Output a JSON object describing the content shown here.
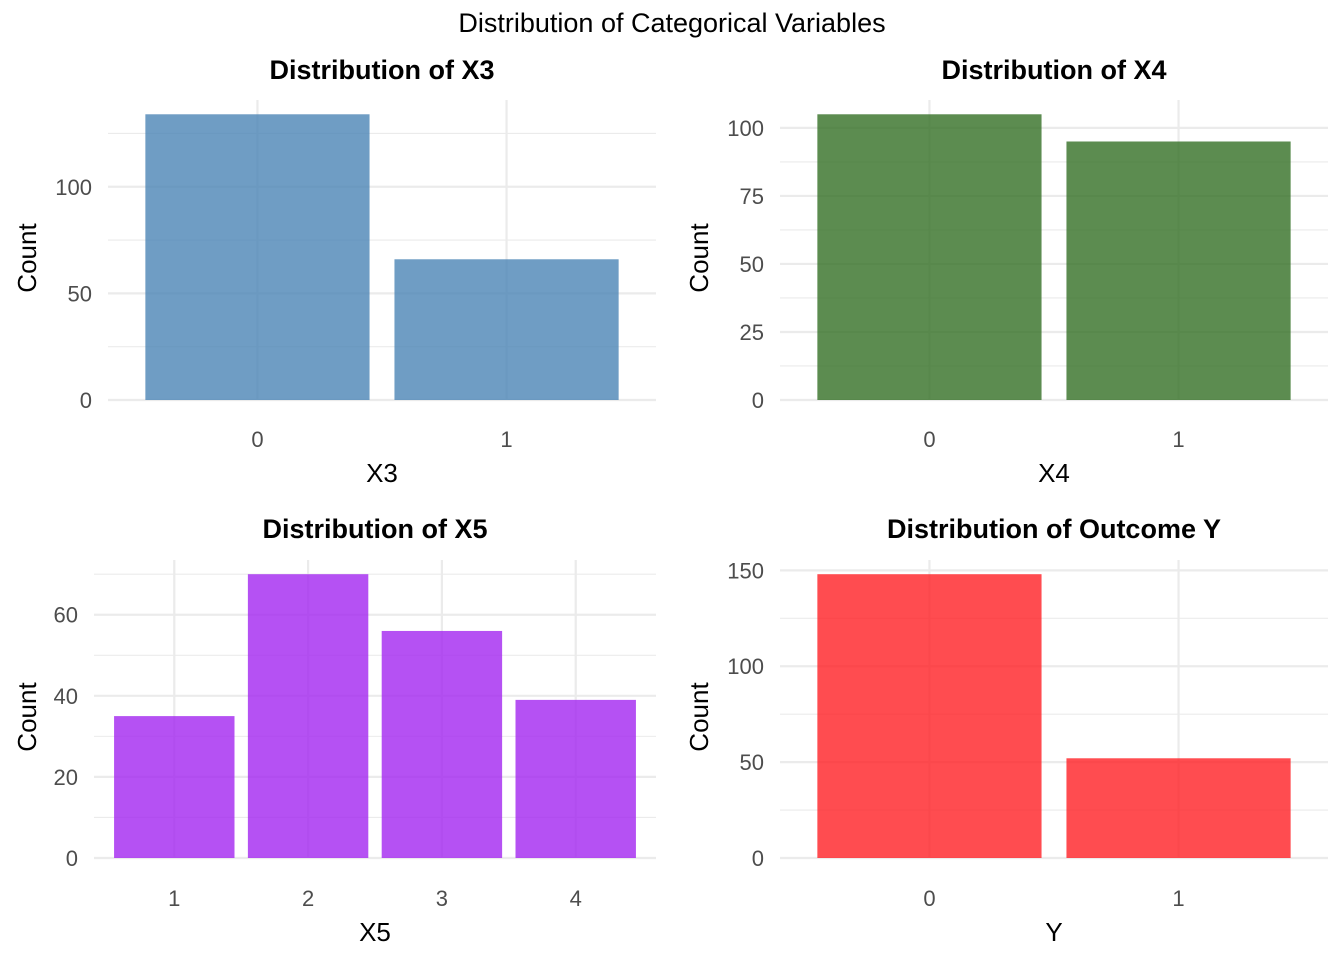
{
  "main_title": "Distribution of Categorical Variables",
  "chart_data": [
    {
      "type": "bar",
      "title": "Distribution of X3",
      "xlabel": "X3",
      "ylabel": "Count",
      "categories": [
        "0",
        "1"
      ],
      "values": [
        134,
        66
      ],
      "yticks": [
        0,
        50,
        100
      ],
      "ylim": [
        0,
        134
      ],
      "color": "#4682b4",
      "grid": true
    },
    {
      "type": "bar",
      "title": "Distribution of X4",
      "xlabel": "X4",
      "ylabel": "Count",
      "categories": [
        "0",
        "1"
      ],
      "values": [
        105,
        95
      ],
      "yticks": [
        0,
        25,
        50,
        75,
        100
      ],
      "ylim": [
        0,
        105
      ],
      "color": "#2e6b1f",
      "grid": true
    },
    {
      "type": "bar",
      "title": "Distribution of X5",
      "xlabel": "X5",
      "ylabel": "Count",
      "categories": [
        "1",
        "2",
        "3",
        "4"
      ],
      "values": [
        35,
        70,
        56,
        39
      ],
      "yticks": [
        0,
        20,
        40,
        60
      ],
      "ylim": [
        0,
        70
      ],
      "color": "#a020f0",
      "grid": true
    },
    {
      "type": "bar",
      "title": "Distribution of Outcome Y",
      "xlabel": "Y",
      "ylabel": "Count",
      "categories": [
        "0",
        "1"
      ],
      "values": [
        148,
        52
      ],
      "yticks": [
        0,
        50,
        100,
        150
      ],
      "ylim": [
        0,
        148
      ],
      "color": "#ff1a1f",
      "grid": true
    }
  ]
}
